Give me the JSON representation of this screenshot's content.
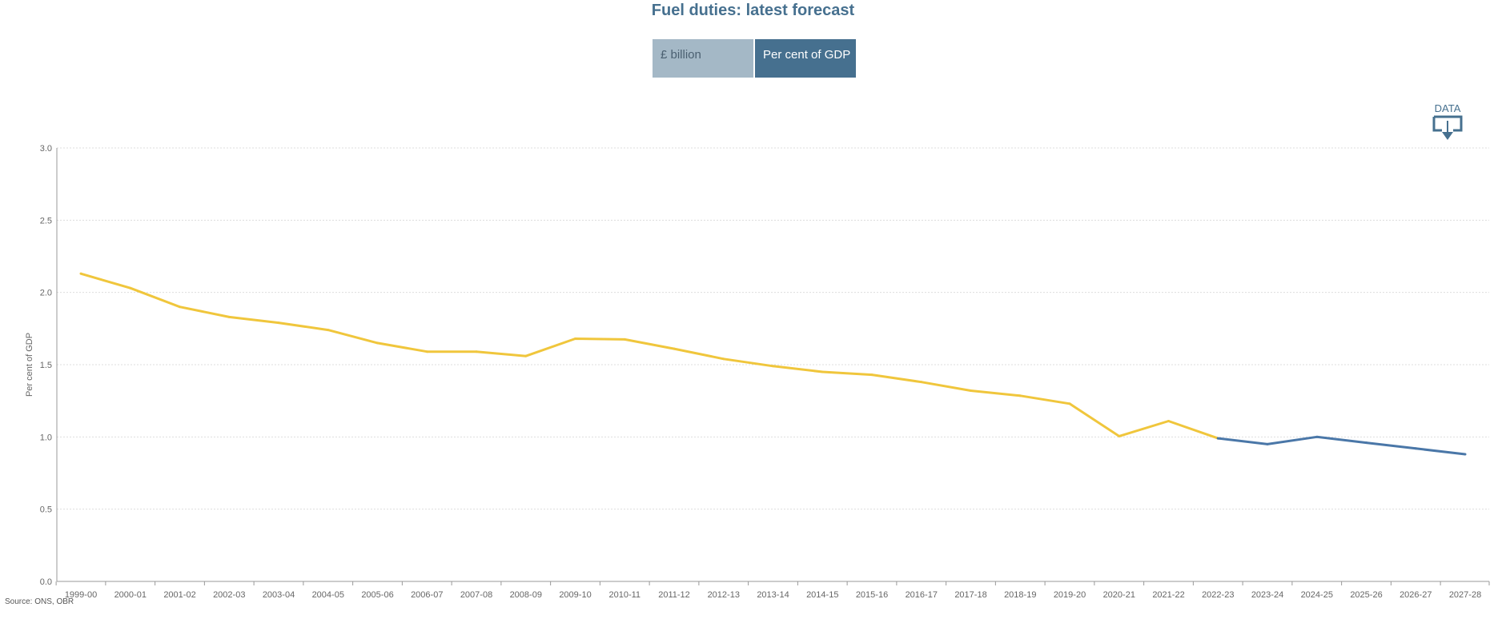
{
  "title": "Fuel duties: latest forecast",
  "toggle": {
    "billion_label": "£ billion",
    "gdp_label": "Per cent of GDP",
    "selected": "Per cent of GDP"
  },
  "download": {
    "label": "DATA",
    "icon": "download-icon"
  },
  "source": "Source: ONS, OBR",
  "colors": {
    "outturn": "#f0c63c",
    "forecast": "#4a77a8",
    "accent": "#46708f"
  },
  "chart_data": {
    "type": "line",
    "title": "Fuel duties: latest forecast",
    "xlabel": "",
    "ylabel": "Per cent of GDP",
    "ylim": [
      0,
      3.0
    ],
    "yticks": [
      "0.0",
      "0.5",
      "1.0",
      "1.5",
      "2.0",
      "2.5",
      "3.0"
    ],
    "grid": true,
    "categories": [
      "1999-00",
      "2000-01",
      "2001-02",
      "2002-03",
      "2003-04",
      "2004-05",
      "2005-06",
      "2006-07",
      "2007-08",
      "2008-09",
      "2009-10",
      "2010-11",
      "2011-12",
      "2012-13",
      "2013-14",
      "2014-15",
      "2015-16",
      "2016-17",
      "2017-18",
      "2018-19",
      "2019-20",
      "2020-21",
      "2021-22",
      "2022-23",
      "2023-24",
      "2024-25",
      "2025-26",
      "2026-27",
      "2027-28"
    ],
    "series": [
      {
        "color": "#f0c63c",
        "values": [
          2.13,
          2.03,
          1.9,
          1.83,
          1.79,
          1.74,
          1.65,
          1.59,
          1.59,
          1.56,
          1.68,
          1.675,
          1.61,
          1.54,
          1.49,
          1.45,
          1.43,
          1.38,
          1.32,
          1.285,
          1.23,
          1.005,
          1.11,
          0.99,
          null,
          null,
          null,
          null,
          null
        ]
      },
      {
        "color": "#4a77a8",
        "values": [
          null,
          null,
          null,
          null,
          null,
          null,
          null,
          null,
          null,
          null,
          null,
          null,
          null,
          null,
          null,
          null,
          null,
          null,
          null,
          null,
          null,
          null,
          null,
          0.99,
          0.95,
          1.0,
          0.96,
          0.92,
          0.88
        ]
      }
    ]
  }
}
